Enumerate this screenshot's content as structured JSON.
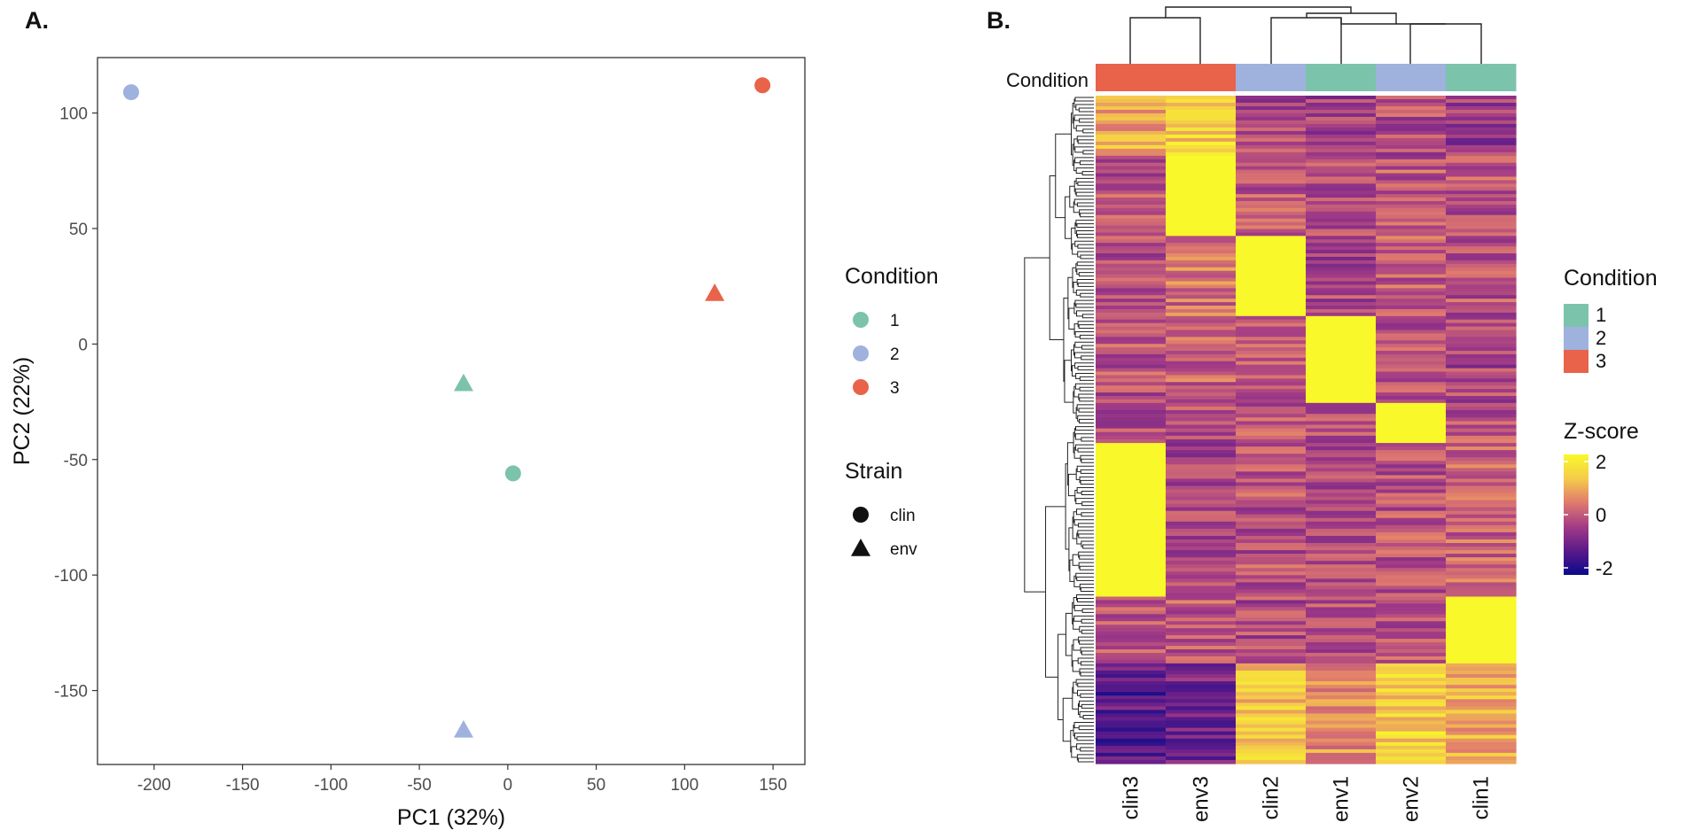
{
  "chart_data": [
    {
      "panel": "A.",
      "type": "scatter",
      "xlabel": "PC1 (32%)",
      "ylabel": "PC2 (22%)",
      "xlim": [
        -232,
        168
      ],
      "ylim": [
        -182,
        124
      ],
      "x_ticks": [
        -200,
        -150,
        -100,
        -50,
        0,
        50,
        100,
        150
      ],
      "y_ticks": [
        100,
        50,
        0,
        -50,
        -100,
        -150
      ],
      "grid": false,
      "points": [
        {
          "sample": "clin2",
          "condition": "2",
          "strain": "clin",
          "x": -213,
          "y": 109
        },
        {
          "sample": "clin3",
          "condition": "3",
          "strain": "clin",
          "x": 144,
          "y": 112
        },
        {
          "sample": "env3",
          "condition": "3",
          "strain": "env",
          "x": 117,
          "y": 22
        },
        {
          "sample": "env1",
          "condition": "1",
          "strain": "env",
          "x": -25,
          "y": -17
        },
        {
          "sample": "clin1",
          "condition": "1",
          "strain": "clin",
          "x": 3,
          "y": -56
        },
        {
          "sample": "env2",
          "condition": "2",
          "strain": "env",
          "x": -25,
          "y": -167
        }
      ],
      "legend_condition": {
        "title": "Condition",
        "items": [
          {
            "label": "1",
            "color": "#7cc3ac"
          },
          {
            "label": "2",
            "color": "#9fb1dd"
          },
          {
            "label": "3",
            "color": "#e8634a"
          }
        ]
      },
      "legend_strain": {
        "title": "Strain",
        "items": [
          {
            "label": "clin",
            "shape": "circle"
          },
          {
            "label": "env",
            "shape": "triangle"
          }
        ]
      }
    },
    {
      "panel": "B.",
      "type": "heatmap",
      "annotation_label": "Condition",
      "columns": [
        "clin3",
        "env3",
        "clin2",
        "env1",
        "env2",
        "clin1"
      ],
      "column_conditions": [
        "3",
        "3",
        "2",
        "1",
        "2",
        "1"
      ],
      "condition_colors": {
        "1": "#7cc3ac",
        "2": "#9fb1dd",
        "3": "#e8634a"
      },
      "legend_condition": {
        "title": "Condition",
        "items": [
          "1",
          "2",
          "3"
        ]
      },
      "legend_zscore": {
        "title": "Z-score",
        "ticks": [
          "2",
          "0",
          "-2"
        ]
      },
      "color_scale": [
        "#0a0a8a",
        "#5a1a8a",
        "#a23b86",
        "#e07a6e",
        "#f5cc4a",
        "#f8f82a"
      ],
      "value_range": [
        -2,
        2
      ],
      "row_blocks": [
        {
          "frac": 0.09,
          "values": [
            0.9,
            1.3,
            -0.3,
            -0.4,
            -0.2,
            -0.5
          ]
        },
        {
          "frac": 0.12,
          "values": [
            -0.1,
            2.0,
            -0.1,
            -0.2,
            0.0,
            -0.1
          ]
        },
        {
          "frac": 0.12,
          "values": [
            -0.1,
            0.3,
            2.0,
            -0.3,
            0.0,
            -0.1
          ]
        },
        {
          "frac": 0.13,
          "values": [
            -0.1,
            0.1,
            -0.1,
            2.0,
            -0.2,
            -0.3
          ]
        },
        {
          "frac": 0.06,
          "values": [
            -0.1,
            -0.1,
            -0.1,
            -0.2,
            2.0,
            -0.1
          ]
        },
        {
          "frac": 0.23,
          "values": [
            2.0,
            -0.3,
            -0.1,
            -0.2,
            -0.1,
            0.1
          ]
        },
        {
          "frac": 0.1,
          "values": [
            -0.1,
            0.0,
            -0.2,
            -0.1,
            -0.1,
            2.0
          ]
        },
        {
          "frac": 0.15,
          "values": [
            -1.2,
            -0.9,
            1.2,
            0.6,
            1.3,
            0.9
          ]
        }
      ]
    }
  ]
}
